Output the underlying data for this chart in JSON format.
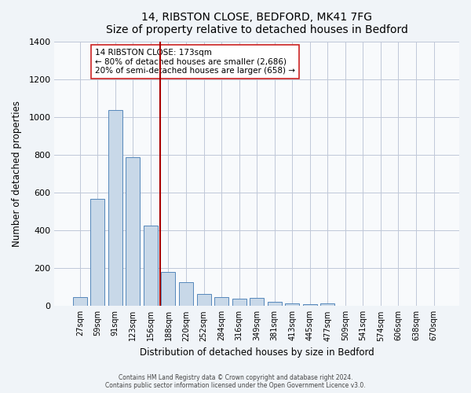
{
  "title": "14, RIBSTON CLOSE, BEDFORD, MK41 7FG",
  "subtitle": "Size of property relative to detached houses in Bedford",
  "xlabel": "Distribution of detached houses by size in Bedford",
  "ylabel": "Number of detached properties",
  "bar_labels": [
    "27sqm",
    "59sqm",
    "91sqm",
    "123sqm",
    "156sqm",
    "188sqm",
    "220sqm",
    "252sqm",
    "284sqm",
    "316sqm",
    "349sqm",
    "381sqm",
    "413sqm",
    "445sqm",
    "477sqm",
    "509sqm",
    "541sqm",
    "574sqm",
    "606sqm",
    "638sqm",
    "670sqm"
  ],
  "bar_values": [
    48,
    570,
    1040,
    790,
    425,
    180,
    125,
    65,
    48,
    40,
    45,
    22,
    15,
    8,
    12,
    0,
    0,
    0,
    0,
    0,
    0
  ],
  "bar_color": "#c8d8e8",
  "bar_edgecolor": "#5588bb",
  "ylim": [
    0,
    1400
  ],
  "yticks": [
    0,
    200,
    400,
    600,
    800,
    1000,
    1200,
    1400
  ],
  "vline_color": "#aa0000",
  "annotation_title": "14 RIBSTON CLOSE: 173sqm",
  "annotation_line1": "← 80% of detached houses are smaller (2,686)",
  "annotation_line2": "20% of semi-detached houses are larger (658) →",
  "footer_line1": "Contains HM Land Registry data © Crown copyright and database right 2024.",
  "footer_line2": "Contains public sector information licensed under the Open Government Licence v3.0.",
  "bg_color": "#f0f4f8",
  "plot_bg_color": "#f8fafc",
  "grid_color": "#c0c8d8"
}
